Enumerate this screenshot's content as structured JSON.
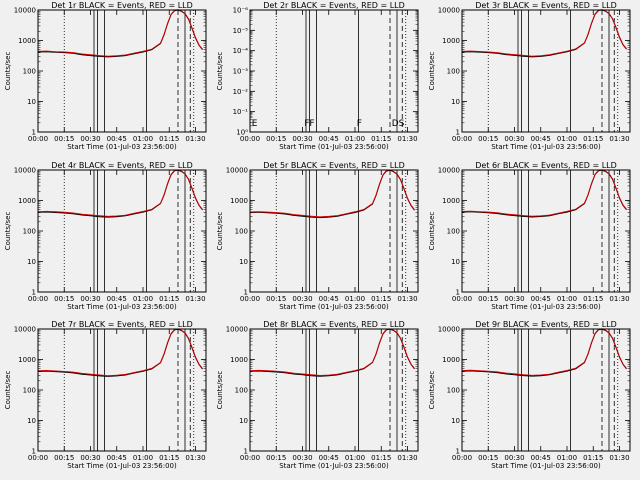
{
  "colors": {
    "background": "#f0f0f0",
    "events_line": "#000000",
    "lld_line": "#cc0000"
  },
  "chart_data": {
    "type": "line",
    "rows": 3,
    "cols": 3,
    "xlabel": "Start Time (01-Jul-03 23:56:00)",
    "ylabel": "Counts/sec",
    "x_minutes_range": [
      0,
      96
    ],
    "x_ticks": [
      {
        "minute": 0,
        "label": "00:00"
      },
      {
        "minute": 15,
        "label": "00:15"
      },
      {
        "minute": 30,
        "label": "00:30"
      },
      {
        "minute": 45,
        "label": "00:45"
      },
      {
        "minute": 60,
        "label": "01:00"
      },
      {
        "minute": 75,
        "label": "01:15"
      },
      {
        "minute": 90,
        "label": "01:30"
      }
    ],
    "curve_minutes": [
      0,
      5,
      10,
      15,
      20,
      25,
      30,
      35,
      40,
      45,
      50,
      55,
      60,
      65,
      70,
      72,
      74,
      76,
      78,
      80,
      82,
      84,
      86,
      88,
      90,
      92,
      94
    ],
    "marker_minutes": {
      "dotted": [
        15,
        89
      ],
      "solid": [
        32,
        34,
        38,
        62,
        84
      ],
      "dashed": [
        80,
        87
      ]
    },
    "panels": [
      {
        "title": "Det 1r BLACK = Events, RED = LLD",
        "yscale": "log",
        "ylim": [
          1,
          10000
        ],
        "y_ticks": [
          "1",
          "10",
          "100",
          "1000",
          "10000"
        ],
        "events": [
          420,
          430,
          410,
          400,
          380,
          340,
          320,
          300,
          290,
          300,
          320,
          370,
          420,
          500,
          800,
          1500,
          3500,
          7000,
          9500,
          10000,
          9000,
          7500,
          5000,
          2500,
          1200,
          700,
          500
        ],
        "lld": [
          440,
          450,
          430,
          420,
          400,
          360,
          340,
          320,
          305,
          315,
          335,
          385,
          440,
          520,
          820,
          1550,
          3600,
          7200,
          9800,
          10200,
          9200,
          7700,
          5100,
          2600,
          1250,
          720,
          520
        ],
        "flags": []
      },
      {
        "title": "Det 2r BLACK = Events, RED = LLD",
        "yscale": "log",
        "ylim": [
          1,
          1e-06
        ],
        "y_ticks": [
          "10⁰",
          "10⁻¹",
          "10⁻²",
          "10⁻³",
          "10⁻⁴",
          "10⁻⁵",
          "10⁻⁶"
        ],
        "events": [],
        "lld": [],
        "flags": [
          {
            "minute": 1,
            "label": "E"
          },
          {
            "minute": 31,
            "label": "FF"
          },
          {
            "minute": 61,
            "label": "F"
          },
          {
            "minute": 81,
            "label": "DS"
          }
        ]
      },
      {
        "title": "Det 3r BLACK = Events, RED = LLD",
        "yscale": "log",
        "ylim": [
          1,
          10000
        ],
        "y_ticks": [
          "1",
          "10",
          "100",
          "1000",
          "10000"
        ],
        "events": [
          420,
          430,
          415,
          400,
          380,
          345,
          325,
          305,
          290,
          300,
          325,
          375,
          425,
          510,
          820,
          1550,
          3600,
          7200,
          9600,
          10000,
          9100,
          7600,
          5100,
          2600,
          1250,
          720,
          520
        ],
        "lld": [
          440,
          450,
          435,
          420,
          400,
          365,
          345,
          325,
          305,
          315,
          340,
          390,
          445,
          530,
          840,
          1600,
          3700,
          7400,
          9900,
          10300,
          9300,
          7800,
          5200,
          2700,
          1300,
          740,
          540
        ],
        "flags": []
      },
      {
        "title": "Det 4r BLACK = Events, RED = LLD",
        "yscale": "log",
        "ylim": [
          1,
          10000
        ],
        "y_ticks": [
          "1",
          "10",
          "100",
          "1000",
          "10000"
        ],
        "events": [
          410,
          420,
          405,
          390,
          370,
          335,
          315,
          295,
          285,
          295,
          315,
          365,
          415,
          495,
          790,
          1480,
          3450,
          6900,
          9400,
          9900,
          8900,
          7400,
          4900,
          2450,
          1180,
          690,
          490
        ],
        "lld": [
          430,
          440,
          425,
          410,
          390,
          355,
          335,
          315,
          300,
          310,
          330,
          380,
          435,
          515,
          810,
          1520,
          3550,
          7100,
          9700,
          10100,
          9100,
          7600,
          5000,
          2550,
          1230,
          710,
          510
        ],
        "flags": []
      },
      {
        "title": "Det 5r BLACK = Events, RED = LLD",
        "yscale": "log",
        "ylim": [
          1,
          10000
        ],
        "y_ticks": [
          "1",
          "10",
          "100",
          "1000",
          "10000"
        ],
        "events": [
          400,
          410,
          395,
          380,
          360,
          325,
          305,
          285,
          275,
          285,
          305,
          355,
          405,
          485,
          770,
          1450,
          3400,
          6800,
          9300,
          9800,
          8800,
          7300,
          4800,
          2400,
          1150,
          680,
          480
        ],
        "lld": [
          420,
          430,
          415,
          400,
          380,
          345,
          325,
          305,
          290,
          300,
          320,
          370,
          425,
          505,
          790,
          1490,
          3500,
          7000,
          9600,
          10000,
          9000,
          7500,
          4950,
          2500,
          1200,
          700,
          500
        ],
        "flags": []
      },
      {
        "title": "Det 6r BLACK = Events, RED = LLD",
        "yscale": "log",
        "ylim": [
          1,
          10000
        ],
        "y_ticks": [
          "1",
          "10",
          "100",
          "1000",
          "10000"
        ],
        "events": [
          415,
          425,
          410,
          395,
          375,
          340,
          320,
          300,
          288,
          298,
          318,
          368,
          418,
          500,
          800,
          1500,
          3500,
          7000,
          9500,
          9950,
          8950,
          7450,
          4950,
          2480,
          1190,
          695,
          495
        ],
        "lld": [
          435,
          445,
          430,
          415,
          395,
          360,
          340,
          320,
          303,
          313,
          333,
          383,
          438,
          520,
          820,
          1540,
          3600,
          7200,
          9800,
          10150,
          9150,
          7650,
          5050,
          2580,
          1240,
          715,
          515
        ],
        "flags": []
      },
      {
        "title": "Det 7r BLACK = Events, RED = LLD",
        "yscale": "log",
        "ylim": [
          1,
          10000
        ],
        "y_ticks": [
          "1",
          "10",
          "100",
          "1000",
          "10000"
        ],
        "events": [
          405,
          415,
          400,
          385,
          365,
          330,
          310,
          290,
          280,
          290,
          310,
          360,
          410,
          490,
          780,
          1470,
          3420,
          6850,
          9350,
          9850,
          8850,
          7350,
          4850,
          2420,
          1160,
          685,
          485
        ],
        "lld": [
          425,
          435,
          420,
          405,
          385,
          350,
          330,
          310,
          295,
          305,
          325,
          375,
          430,
          510,
          800,
          1510,
          3520,
          7050,
          9650,
          10050,
          9050,
          7550,
          4980,
          2520,
          1210,
          705,
          505
        ],
        "flags": []
      },
      {
        "title": "Det 8r BLACK = Events, RED = LLD",
        "yscale": "log",
        "ylim": [
          1,
          10000
        ],
        "y_ticks": [
          "1",
          "10",
          "100",
          "1000",
          "10000"
        ],
        "events": [
          410,
          420,
          405,
          390,
          370,
          335,
          315,
          295,
          283,
          293,
          313,
          363,
          413,
          495,
          790,
          1480,
          3450,
          6900,
          9400,
          9900,
          8900,
          7400,
          4900,
          2450,
          1180,
          690,
          490
        ],
        "lld": [
          430,
          440,
          425,
          410,
          390,
          355,
          335,
          315,
          298,
          308,
          328,
          378,
          433,
          515,
          810,
          1520,
          3550,
          7100,
          9700,
          10100,
          9100,
          7600,
          5000,
          2550,
          1230,
          710,
          510
        ],
        "flags": []
      },
      {
        "title": "Det 9r BLACK = Events, RED = LLD",
        "yscale": "log",
        "ylim": [
          1,
          10000
        ],
        "y_ticks": [
          "1",
          "10",
          "100",
          "1000",
          "10000"
        ],
        "events": [
          412,
          422,
          407,
          392,
          372,
          337,
          317,
          297,
          285,
          295,
          315,
          365,
          415,
          497,
          795,
          1490,
          3470,
          6950,
          9450,
          9920,
          8920,
          7420,
          4920,
          2460,
          1185,
          692,
          492
        ],
        "lld": [
          432,
          442,
          427,
          412,
          392,
          357,
          337,
          317,
          300,
          310,
          330,
          380,
          435,
          517,
          815,
          1530,
          3570,
          7150,
          9750,
          10120,
          9120,
          7620,
          5020,
          2560,
          1235,
          712,
          512
        ],
        "flags": []
      }
    ]
  }
}
